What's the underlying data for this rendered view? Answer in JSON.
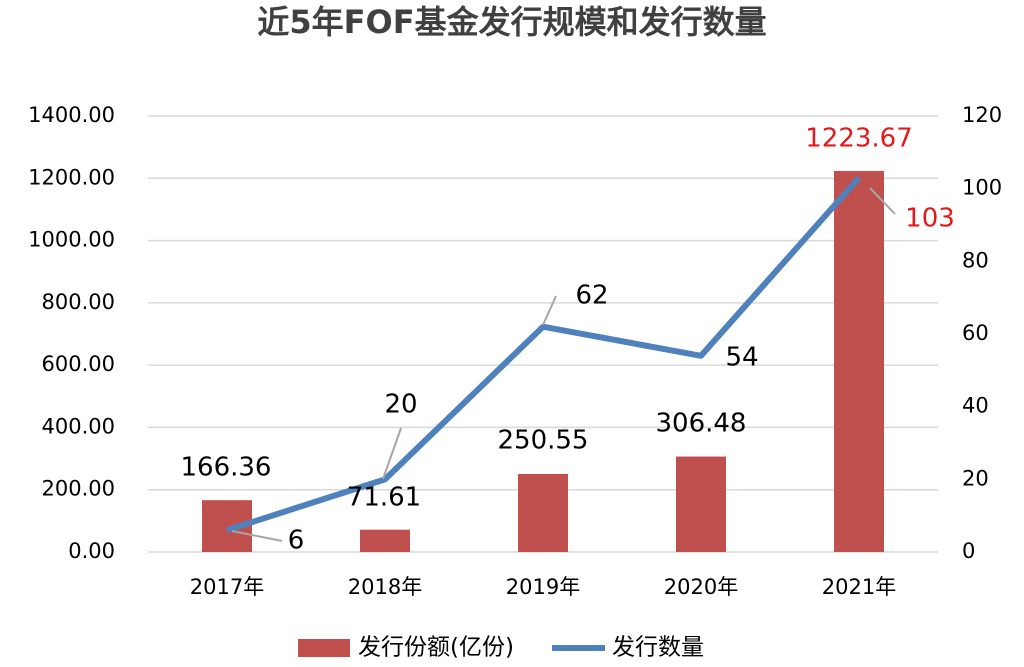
{
  "chart_data": {
    "type": "bar_line",
    "title": "近5年FOF基金发行规模和发行数量",
    "categories": [
      "2017年",
      "2018年",
      "2019年",
      "2020年",
      "2021年"
    ],
    "series": [
      {
        "name": "发行份额(亿份)",
        "type": "bar",
        "color": "#c0504d",
        "values": [
          166.36,
          71.61,
          250.55,
          306.48,
          1223.67
        ],
        "label_colors": [
          "#000000",
          "#000000",
          "#000000",
          "#000000",
          "#e31a1c"
        ]
      },
      {
        "name": "发行数量",
        "type": "line",
        "axis": "y2",
        "color": "#4f81bd",
        "values": [
          6,
          20,
          62,
          54,
          103
        ],
        "label_colors": [
          "#000000",
          "#000000",
          "#000000",
          "#000000",
          "#e31a1c"
        ]
      }
    ],
    "ylim": [
      0,
      1400
    ],
    "yticks": [
      {
        "value": 0,
        "label": "0.00"
      },
      {
        "value": 200,
        "label": "200.00"
      },
      {
        "value": 400,
        "label": "400.00"
      },
      {
        "value": 600,
        "label": "600.00"
      },
      {
        "value": 800,
        "label": "800.00"
      },
      {
        "value": 1000,
        "label": "1000.00"
      },
      {
        "value": 1200,
        "label": "1200.00"
      },
      {
        "value": 1400,
        "label": "1400.00"
      }
    ],
    "y2lim": [
      0,
      120
    ],
    "y2ticks": [
      0,
      20,
      40,
      60,
      80,
      100,
      120
    ],
    "grid": true,
    "legend": "bottom"
  }
}
